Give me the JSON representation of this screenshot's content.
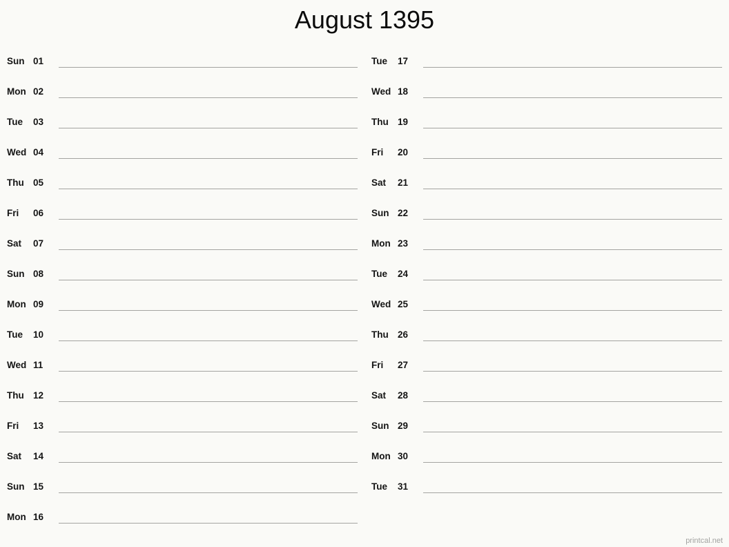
{
  "title": "August 1395",
  "watermark": "printcal.net",
  "colors": {
    "background": "#fafaf7",
    "text": "#141414",
    "note_line": "#a3a3a0",
    "watermark": "#a2a2a0"
  },
  "columns": [
    {
      "rows": [
        {
          "day": "Sun",
          "date": "01"
        },
        {
          "day": "Mon",
          "date": "02"
        },
        {
          "day": "Tue",
          "date": "03"
        },
        {
          "day": "Wed",
          "date": "04"
        },
        {
          "day": "Thu",
          "date": "05"
        },
        {
          "day": "Fri",
          "date": "06"
        },
        {
          "day": "Sat",
          "date": "07"
        },
        {
          "day": "Sun",
          "date": "08"
        },
        {
          "day": "Mon",
          "date": "09"
        },
        {
          "day": "Tue",
          "date": "10"
        },
        {
          "day": "Wed",
          "date": "11"
        },
        {
          "day": "Thu",
          "date": "12"
        },
        {
          "day": "Fri",
          "date": "13"
        },
        {
          "day": "Sat",
          "date": "14"
        },
        {
          "day": "Sun",
          "date": "15"
        },
        {
          "day": "Mon",
          "date": "16"
        }
      ]
    },
    {
      "rows": [
        {
          "day": "Tue",
          "date": "17"
        },
        {
          "day": "Wed",
          "date": "18"
        },
        {
          "day": "Thu",
          "date": "19"
        },
        {
          "day": "Fri",
          "date": "20"
        },
        {
          "day": "Sat",
          "date": "21"
        },
        {
          "day": "Sun",
          "date": "22"
        },
        {
          "day": "Mon",
          "date": "23"
        },
        {
          "day": "Tue",
          "date": "24"
        },
        {
          "day": "Wed",
          "date": "25"
        },
        {
          "day": "Thu",
          "date": "26"
        },
        {
          "day": "Fri",
          "date": "27"
        },
        {
          "day": "Sat",
          "date": "28"
        },
        {
          "day": "Sun",
          "date": "29"
        },
        {
          "day": "Mon",
          "date": "30"
        },
        {
          "day": "Tue",
          "date": "31"
        }
      ]
    }
  ]
}
